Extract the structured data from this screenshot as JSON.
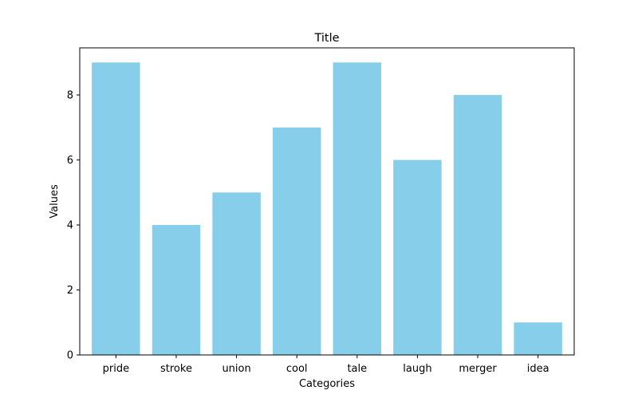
{
  "chart_data": {
    "type": "bar",
    "title": "Title",
    "xlabel": "Categories",
    "ylabel": "Values",
    "categories": [
      "pride",
      "stroke",
      "union",
      "cool",
      "tale",
      "laugh",
      "merger",
      "idea"
    ],
    "values": [
      9,
      4,
      5,
      7,
      9,
      6,
      8,
      1
    ],
    "ylim": [
      0,
      9.45
    ],
    "yticks": [
      0,
      2,
      4,
      6,
      8
    ],
    "grid": false,
    "bar_color": "#87CEEB"
  }
}
